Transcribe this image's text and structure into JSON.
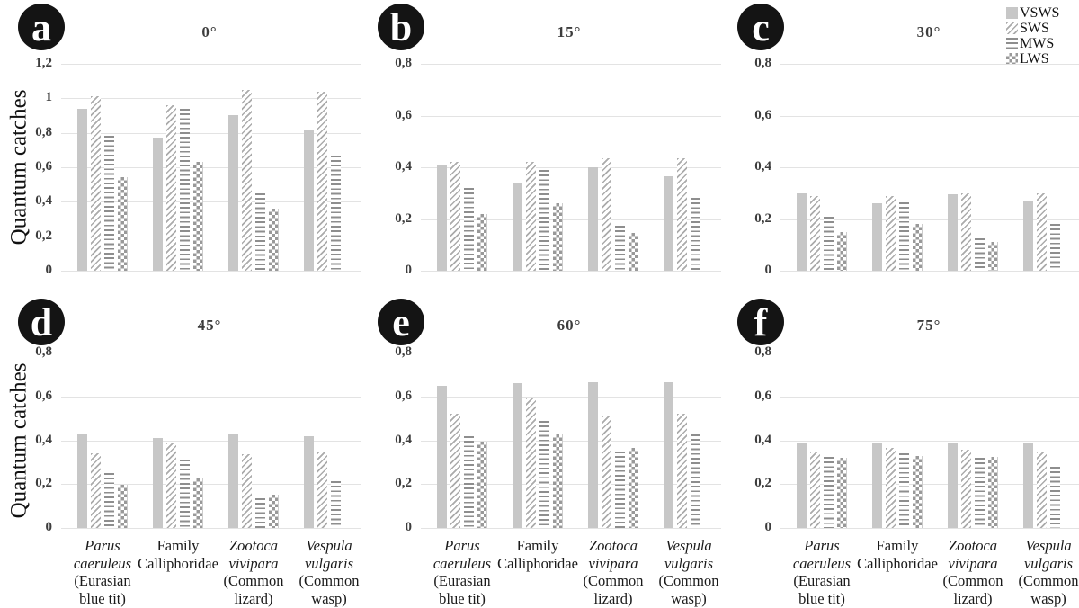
{
  "figure": {
    "ylabel": "Quantum catches",
    "legend": [
      {
        "label": "VSWS",
        "pattern": "solid"
      },
      {
        "label": "SWS",
        "pattern": "diag"
      },
      {
        "label": "MWS",
        "pattern": "hlines"
      },
      {
        "label": "LWS",
        "pattern": "checker"
      }
    ],
    "colors": {
      "bar_solid": "#c7c7c7",
      "hatch_gray": "#ababab",
      "line_gray": "#8e8e8e",
      "checker_gray": "#999999",
      "gridline": "#e3e3e3",
      "tick_text": "#3d3d3d",
      "badge_bg": "#141414",
      "badge_text": "#ffffff"
    },
    "categories": [
      {
        "key": "parus",
        "sci_lines": [
          "Parus",
          "caeruleus"
        ],
        "sci_italic": true,
        "common_lines": [
          "(Eurasian",
          "blue tit)"
        ]
      },
      {
        "key": "calliphoridae",
        "sci_lines": [
          "Family",
          "Calliphoridae"
        ],
        "sci_italic": false,
        "common_lines": []
      },
      {
        "key": "zootoca",
        "sci_lines": [
          "Zootoca",
          "vivipara"
        ],
        "sci_italic": true,
        "common_lines": [
          "(Common",
          "lizard)"
        ]
      },
      {
        "key": "vespula",
        "sci_lines": [
          "Vespula",
          "vulgaris"
        ],
        "sci_italic": true,
        "common_lines": [
          "(Common",
          "wasp)"
        ]
      }
    ]
  },
  "chart_data": [
    {
      "type": "bar",
      "panel": "a",
      "title": "0°",
      "ylabel": "Quantum catches",
      "ylim": [
        0,
        1.2
      ],
      "ytick_values": [
        0,
        0.2,
        0.4,
        0.6,
        0.8,
        1,
        1.2
      ],
      "ytick_labels": [
        "0",
        "0,2",
        "0,4",
        "0,6",
        "0,8",
        "1",
        "1,2"
      ],
      "grid": true,
      "categories": [
        "Parus caeruleus (Eurasian blue tit)",
        "Family Calliphoridae",
        "Zootoca vivipara (Common lizard)",
        "Vespula vulgaris (Common wasp)"
      ],
      "series": [
        {
          "name": "VSWS",
          "values": [
            0.94,
            0.77,
            0.9,
            0.82
          ]
        },
        {
          "name": "SWS",
          "values": [
            1.01,
            0.96,
            1.05,
            1.04
          ]
        },
        {
          "name": "MWS",
          "values": [
            0.78,
            0.94,
            0.45,
            0.67
          ]
        },
        {
          "name": "LWS",
          "values": [
            0.54,
            0.63,
            0.36,
            null
          ]
        }
      ]
    },
    {
      "type": "bar",
      "panel": "b",
      "title": "15°",
      "ylabel": "Quantum catches",
      "ylim": [
        0,
        0.8
      ],
      "ytick_values": [
        0,
        0.2,
        0.4,
        0.6,
        0.8
      ],
      "ytick_labels": [
        "0",
        "0,2",
        "0,4",
        "0,6",
        "0,8"
      ],
      "grid": true,
      "categories": [
        "Parus caeruleus (Eurasian blue tit)",
        "Family Calliphoridae",
        "Zootoca vivipara (Common lizard)",
        "Vespula vulgaris (Common wasp)"
      ],
      "series": [
        {
          "name": "VSWS",
          "values": [
            0.41,
            0.34,
            0.4,
            0.365
          ]
        },
        {
          "name": "SWS",
          "values": [
            0.42,
            0.42,
            0.435,
            0.435
          ]
        },
        {
          "name": "MWS",
          "values": [
            0.32,
            0.39,
            0.175,
            0.28
          ]
        },
        {
          "name": "LWS",
          "values": [
            0.22,
            0.26,
            0.145,
            null
          ]
        }
      ]
    },
    {
      "type": "bar",
      "panel": "c",
      "title": "30°",
      "ylabel": "Quantum catches",
      "ylim": [
        0,
        0.8
      ],
      "ytick_values": [
        0,
        0.2,
        0.4,
        0.6,
        0.8
      ],
      "ytick_labels": [
        "0",
        "0,2",
        "0,4",
        "0,6",
        "0,8"
      ],
      "grid": true,
      "categories": [
        "Parus caeruleus (Eurasian blue tit)",
        "Family Calliphoridae",
        "Zootoca vivipara (Common lizard)",
        "Vespula vulgaris (Common wasp)"
      ],
      "series": [
        {
          "name": "VSWS",
          "values": [
            0.3,
            0.26,
            0.295,
            0.27
          ]
        },
        {
          "name": "SWS",
          "values": [
            0.29,
            0.29,
            0.3,
            0.3
          ]
        },
        {
          "name": "MWS",
          "values": [
            0.21,
            0.265,
            0.125,
            0.18
          ]
        },
        {
          "name": "LWS",
          "values": [
            0.15,
            0.18,
            0.11,
            null
          ]
        }
      ]
    },
    {
      "type": "bar",
      "panel": "d",
      "title": "45°",
      "ylabel": "Quantum catches",
      "ylim": [
        0,
        0.8
      ],
      "ytick_values": [
        0,
        0.2,
        0.4,
        0.6,
        0.8
      ],
      "ytick_labels": [
        "0",
        "0,2",
        "0,4",
        "0,6",
        "0,8"
      ],
      "grid": true,
      "categories": [
        "Parus caeruleus (Eurasian blue tit)",
        "Family Calliphoridae",
        "Zootoca vivipara (Common lizard)",
        "Vespula vulgaris (Common wasp)"
      ],
      "series": [
        {
          "name": "VSWS",
          "values": [
            0.43,
            0.41,
            0.43,
            0.42
          ]
        },
        {
          "name": "SWS",
          "values": [
            0.34,
            0.39,
            0.335,
            0.345
          ]
        },
        {
          "name": "MWS",
          "values": [
            0.25,
            0.31,
            0.135,
            0.215
          ]
        },
        {
          "name": "LWS",
          "values": [
            0.195,
            0.225,
            0.15,
            null
          ]
        }
      ]
    },
    {
      "type": "bar",
      "panel": "e",
      "title": "60°",
      "ylabel": "Quantum catches",
      "ylim": [
        0,
        0.8
      ],
      "ytick_values": [
        0,
        0.2,
        0.4,
        0.6,
        0.8
      ],
      "ytick_labels": [
        "0",
        "0,2",
        "0,4",
        "0,6",
        "0,8"
      ],
      "grid": true,
      "categories": [
        "Parus caeruleus (Eurasian blue tit)",
        "Family Calliphoridae",
        "Zootoca vivipara (Common lizard)",
        "Vespula vulgaris (Common wasp)"
      ],
      "series": [
        {
          "name": "VSWS",
          "values": [
            0.65,
            0.66,
            0.665,
            0.665
          ]
        },
        {
          "name": "SWS",
          "values": [
            0.52,
            0.595,
            0.51,
            0.52
          ]
        },
        {
          "name": "MWS",
          "values": [
            0.42,
            0.49,
            0.35,
            0.425
          ]
        },
        {
          "name": "LWS",
          "values": [
            0.395,
            0.425,
            0.365,
            null
          ]
        }
      ]
    },
    {
      "type": "bar",
      "panel": "f",
      "title": "75°",
      "ylabel": "Quantum catches",
      "ylim": [
        0,
        0.8
      ],
      "ytick_values": [
        0,
        0.2,
        0.4,
        0.6,
        0.8
      ],
      "ytick_labels": [
        "0",
        "0,2",
        "0,4",
        "0,6",
        "0,8"
      ],
      "grid": true,
      "categories": [
        "Parus caeruleus (Eurasian blue tit)",
        "Family Calliphoridae",
        "Zootoca vivipara (Common lizard)",
        "Vespula vulgaris (Common wasp)"
      ],
      "series": [
        {
          "name": "VSWS",
          "values": [
            0.385,
            0.39,
            0.39,
            0.39
          ]
        },
        {
          "name": "SWS",
          "values": [
            0.35,
            0.365,
            0.355,
            0.35
          ]
        },
        {
          "name": "MWS",
          "values": [
            0.325,
            0.34,
            0.32,
            0.28
          ]
        },
        {
          "name": "LWS",
          "values": [
            0.32,
            0.33,
            0.325,
            null
          ]
        }
      ]
    }
  ]
}
